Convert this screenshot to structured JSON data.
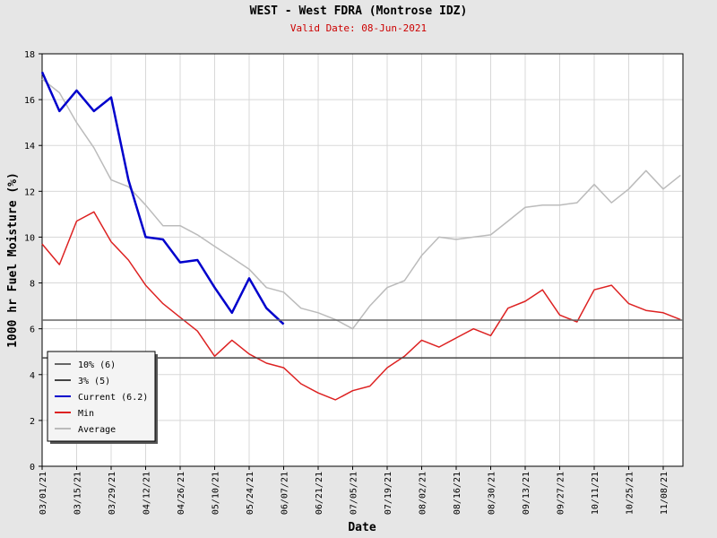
{
  "chart_data": {
    "type": "line",
    "title": "WEST - West FDRA (Montrose IDZ)",
    "subtitle": "Valid Date: 08-Jun-2021",
    "y_label": "1000 hr Fuel Moisture (%)",
    "x_label": "Date",
    "x": [
      "03/01/21",
      "03/08/21",
      "03/15/21",
      "03/22/21",
      "03/29/21",
      "04/05/21",
      "04/12/21",
      "04/19/21",
      "04/26/21",
      "05/03/21",
      "05/10/21",
      "05/17/21",
      "05/24/21",
      "05/31/21",
      "06/07/21",
      "06/14/21",
      "06/21/21",
      "06/28/21",
      "07/05/21",
      "07/12/21",
      "07/19/21",
      "07/26/21",
      "08/02/21",
      "08/09/21",
      "08/16/21",
      "08/23/21",
      "08/30/21",
      "09/06/21",
      "09/13/21",
      "09/20/21",
      "09/27/21",
      "10/04/21",
      "10/11/21",
      "10/18/21",
      "10/25/21",
      "11/01/21",
      "11/08/21",
      "11/15/21"
    ],
    "xlim": [
      "03/01/21",
      "11/16/21"
    ],
    "xticks": [
      "03/01/21",
      "03/15/21",
      "03/29/21",
      "04/12/21",
      "04/26/21",
      "05/10/21",
      "05/24/21",
      "06/07/21",
      "06/21/21",
      "07/05/21",
      "07/19/21",
      "08/02/21",
      "08/16/21",
      "08/30/21",
      "09/13/21",
      "09/27/21",
      "10/11/21",
      "10/25/21",
      "11/08/21"
    ],
    "ylim": [
      0,
      18
    ],
    "yticks": [
      0,
      2,
      4,
      6,
      8,
      10,
      12,
      14,
      16,
      18
    ],
    "grid": true,
    "legend_position": "lower left",
    "thresholds": [
      {
        "name": "10% (6)",
        "value": 6.38,
        "color": "#666666"
      },
      {
        "name": "3% (5)",
        "value": 4.73,
        "color": "#444444"
      }
    ],
    "series": [
      {
        "name": "Current (6.2)",
        "color": "#0000cc",
        "values": [
          17.2,
          15.5,
          16.4,
          15.5,
          16.1,
          12.5,
          10.0,
          9.9,
          8.9,
          9.0,
          7.8,
          6.7,
          8.2,
          6.9,
          6.2,
          null,
          null,
          null,
          null,
          null,
          null,
          null,
          null,
          null,
          null,
          null,
          null,
          null,
          null,
          null,
          null,
          null,
          null,
          null,
          null,
          null,
          null,
          null
        ]
      },
      {
        "name": "Min",
        "color": "#dd2222",
        "values": [
          9.7,
          8.8,
          10.7,
          11.1,
          9.8,
          9.0,
          7.9,
          7.1,
          6.5,
          5.9,
          4.8,
          5.5,
          4.9,
          4.5,
          4.3,
          3.6,
          3.2,
          2.9,
          3.3,
          3.5,
          4.3,
          4.8,
          5.5,
          5.2,
          5.6,
          6.0,
          5.7,
          6.9,
          7.2,
          7.7,
          6.6,
          6.3,
          7.7,
          7.9,
          7.1,
          6.8,
          6.7,
          6.4
        ]
      },
      {
        "name": "Average",
        "color": "#bbbbbb",
        "values": [
          16.9,
          16.3,
          15.0,
          13.9,
          12.5,
          12.2,
          11.4,
          10.5,
          10.5,
          10.1,
          9.6,
          9.1,
          8.6,
          7.8,
          7.6,
          6.9,
          6.7,
          6.4,
          6.0,
          7.0,
          7.8,
          8.1,
          9.2,
          10.0,
          9.9,
          10.0,
          10.1,
          10.7,
          11.3,
          11.4,
          11.4,
          11.5,
          12.3,
          11.5,
          12.1,
          12.9,
          12.1,
          12.7
        ]
      }
    ]
  }
}
